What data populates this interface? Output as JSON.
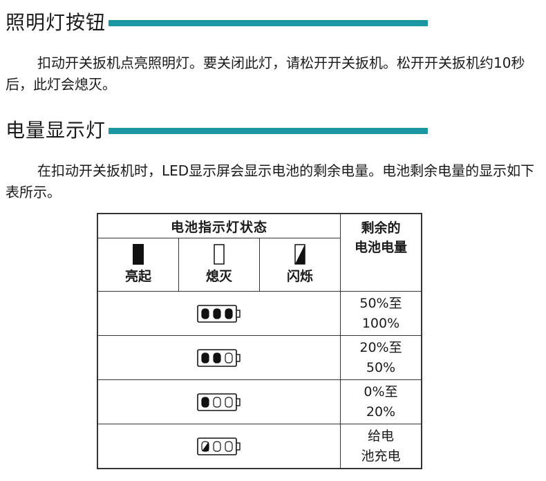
{
  "section_light": {
    "title": "照明灯按钮",
    "body": "扣动开关扳机点亮照明灯。要关闭此灯，请松开开关扳机。松开开关扳机约10秒后，此灯会熄灭。"
  },
  "section_battery": {
    "title": "电量显示灯",
    "body": "在扣动开关扳机时，LED显示屏会显示电池的剩余电量。电池剩余电量的显示如下表所示。"
  },
  "table": {
    "header_states": "电池指示灯状态",
    "header_remaining_line1": "剩余的",
    "header_remaining_line2": "电池电量",
    "states": [
      {
        "label": "亮起",
        "icon": "lamp-on-icon"
      },
      {
        "label": "熄灭",
        "icon": "lamp-off-icon"
      },
      {
        "label": "闪烁",
        "icon": "lamp-blink-icon"
      }
    ],
    "rows": [
      {
        "indicator": [
          "on",
          "on",
          "on"
        ],
        "line1": "50%至",
        "line2": "100%"
      },
      {
        "indicator": [
          "on",
          "on",
          "off"
        ],
        "line1": "20%至",
        "line2": "50%"
      },
      {
        "indicator": [
          "on",
          "off",
          "off"
        ],
        "line1": "0%至",
        "line2": "20%"
      },
      {
        "indicator": [
          "blink",
          "off",
          "off"
        ],
        "line1": "给电",
        "line2": "池充电"
      }
    ]
  },
  "colors": {
    "accent": "#1b97a3",
    "text": "#1a1a1a",
    "border": "#333333"
  }
}
